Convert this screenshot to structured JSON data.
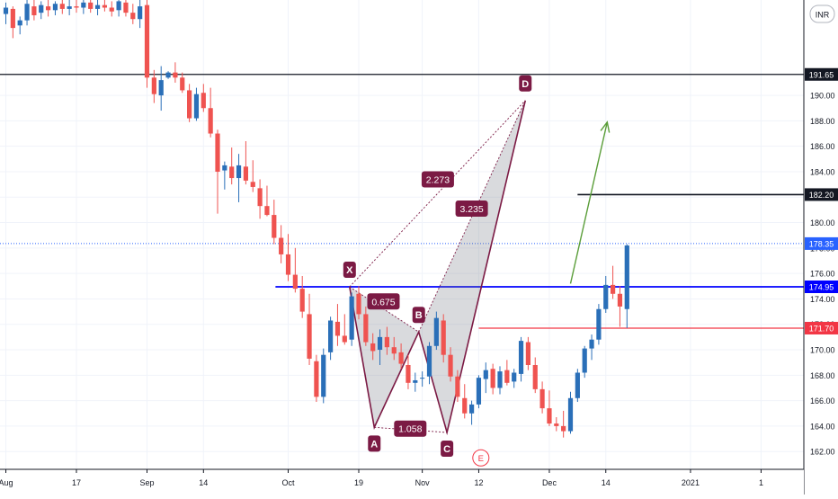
{
  "currency_badge": "INR",
  "chart_data": {
    "type": "candlestick",
    "ylim": [
      160.6,
      197.5
    ],
    "y_ticks": [
      162,
      164,
      166,
      168,
      170,
      172,
      174,
      176,
      178,
      180,
      182,
      184,
      186,
      188,
      190
    ],
    "y_tick_labels": [
      "162.00",
      "164.00",
      "166.00",
      "168.00",
      "170.00",
      "172.00",
      "174.00",
      "176.00",
      "178.00",
      "180.00",
      "182.00",
      "184.00",
      "186.00",
      "188.00",
      "190.00"
    ],
    "x_tick_labels": [
      "Aug",
      "17",
      "Sep",
      "14",
      "Oct",
      "19",
      "Nov",
      "12",
      "Dec",
      "14",
      "2021",
      "1"
    ],
    "x_tick_slots": [
      0,
      10,
      20,
      28,
      40,
      50,
      59,
      67,
      77,
      85,
      97,
      107
    ],
    "grid": true,
    "price_labels": [
      {
        "name": "level-191-65",
        "value": 191.65,
        "label": "191.65",
        "color": "#131722",
        "style": "line"
      },
      {
        "name": "level-182-20",
        "value": 182.2,
        "label": "182.20",
        "color": "#131722",
        "style": "segment"
      },
      {
        "name": "last-price",
        "value": 178.35,
        "label": "178.35",
        "color": "#2962ff",
        "style": "dotted"
      },
      {
        "name": "level-174-95",
        "value": 174.95,
        "label": "174.95",
        "color": "#0000ff",
        "style": "segment"
      },
      {
        "name": "level-171-70",
        "value": 171.7,
        "label": "171.70",
        "color": "#f23645",
        "style": "segment"
      }
    ],
    "candles": [
      [
        196.4,
        197.3,
        195.6,
        196.9
      ],
      [
        196.8,
        197.0,
        194.5,
        195.3
      ],
      [
        195.5,
        196.2,
        194.8,
        195.9
      ],
      [
        195.9,
        197.5,
        195.5,
        197.2
      ],
      [
        197.0,
        197.6,
        195.9,
        196.3
      ],
      [
        196.5,
        197.4,
        196.0,
        197.1
      ],
      [
        197.0,
        197.6,
        196.2,
        196.7
      ],
      [
        196.7,
        197.4,
        196.3,
        197.2
      ],
      [
        197.2,
        197.6,
        196.4,
        196.8
      ],
      [
        196.8,
        197.5,
        196.3,
        197.0
      ],
      [
        197.0,
        197.6,
        196.5,
        196.9
      ],
      [
        196.9,
        197.6,
        196.4,
        197.3
      ],
      [
        197.3,
        197.7,
        196.5,
        196.8
      ],
      [
        196.8,
        197.5,
        196.3,
        197.1
      ],
      [
        197.1,
        197.6,
        196.6,
        196.9
      ],
      [
        196.9,
        197.4,
        196.2,
        196.6
      ],
      [
        196.7,
        197.7,
        196.2,
        197.4
      ],
      [
        197.3,
        197.6,
        196.2,
        196.5
      ],
      [
        196.5,
        197.2,
        195.6,
        196.0
      ],
      [
        196.0,
        197.5,
        195.3,
        197.0
      ],
      [
        197.1,
        197.6,
        190.6,
        191.4
      ],
      [
        191.4,
        192.0,
        189.4,
        190.1
      ],
      [
        190.0,
        192.3,
        188.8,
        191.2
      ],
      [
        191.4,
        191.9,
        191.3,
        191.8
      ],
      [
        191.8,
        192.6,
        191.0,
        191.4
      ],
      [
        191.4,
        191.8,
        190.2,
        190.4
      ],
      [
        190.4,
        190.9,
        187.9,
        188.2
      ],
      [
        188.2,
        190.6,
        188.0,
        190.1
      ],
      [
        190.2,
        190.9,
        188.7,
        189.0
      ],
      [
        189.0,
        190.6,
        186.7,
        187.0
      ],
      [
        187.0,
        187.3,
        180.7,
        184.0
      ],
      [
        184.1,
        184.8,
        182.6,
        184.5
      ],
      [
        184.4,
        185.9,
        183.0,
        183.5
      ],
      [
        183.5,
        185.4,
        181.6,
        184.5
      ],
      [
        184.4,
        186.4,
        183.0,
        183.3
      ],
      [
        183.2,
        184.9,
        182.4,
        182.8
      ],
      [
        182.7,
        183.4,
        180.3,
        181.3
      ],
      [
        181.3,
        182.9,
        180.5,
        180.6
      ],
      [
        180.6,
        181.8,
        178.3,
        178.8
      ],
      [
        178.8,
        179.8,
        176.8,
        177.5
      ],
      [
        177.5,
        179.1,
        175.4,
        175.9
      ],
      [
        175.9,
        178.0,
        174.5,
        174.8
      ],
      [
        174.8,
        175.8,
        172.5,
        173.0
      ],
      [
        172.8,
        174.4,
        168.8,
        169.3
      ],
      [
        169.1,
        169.6,
        165.9,
        166.3
      ],
      [
        166.3,
        170.1,
        165.8,
        169.6
      ],
      [
        169.8,
        172.6,
        169.2,
        172.3
      ],
      [
        172.2,
        173.6,
        170.3,
        171.1
      ],
      [
        171.1,
        172.8,
        170.4,
        170.6
      ],
      [
        170.8,
        174.5,
        170.3,
        174.2
      ],
      [
        174.4,
        175.0,
        172.4,
        172.8
      ],
      [
        172.8,
        173.4,
        170.3,
        170.6
      ],
      [
        170.5,
        171.3,
        169.2,
        169.9
      ],
      [
        170.0,
        171.6,
        168.8,
        171.0
      ],
      [
        171.0,
        171.8,
        169.6,
        170.2
      ],
      [
        170.2,
        171.0,
        169.2,
        169.7
      ],
      [
        169.8,
        170.5,
        168.5,
        168.9
      ],
      [
        168.8,
        169.6,
        166.9,
        167.4
      ],
      [
        167.4,
        168.2,
        166.7,
        167.6
      ],
      [
        167.8,
        168.3,
        167.1,
        167.8
      ],
      [
        167.9,
        170.6,
        167.3,
        170.3
      ],
      [
        170.3,
        173.0,
        170.0,
        172.5
      ],
      [
        172.3,
        172.8,
        169.0,
        169.6
      ],
      [
        169.6,
        170.2,
        167.5,
        167.9
      ],
      [
        167.9,
        168.4,
        165.9,
        166.3
      ],
      [
        166.2,
        167.3,
        164.6,
        165.0
      ],
      [
        165.0,
        166.0,
        164.1,
        165.7
      ],
      [
        165.7,
        168.0,
        165.4,
        167.8
      ],
      [
        167.7,
        169.0,
        166.6,
        168.4
      ],
      [
        168.5,
        168.9,
        166.5,
        167.0
      ],
      [
        167.0,
        168.7,
        166.5,
        168.3
      ],
      [
        168.4,
        169.2,
        167.2,
        167.4
      ],
      [
        167.5,
        168.5,
        167.0,
        168.2
      ],
      [
        168.1,
        171.0,
        167.5,
        170.7
      ],
      [
        170.6,
        171.0,
        168.4,
        168.8
      ],
      [
        168.8,
        169.4,
        166.6,
        166.9
      ],
      [
        166.9,
        167.5,
        165.0,
        165.4
      ],
      [
        165.4,
        166.8,
        164.0,
        164.2
      ],
      [
        164.2,
        164.7,
        163.6,
        164.0
      ],
      [
        164.0,
        165.2,
        163.1,
        163.6
      ],
      [
        163.6,
        166.7,
        163.4,
        166.2
      ],
      [
        166.2,
        168.5,
        165.9,
        168.2
      ],
      [
        168.2,
        170.3,
        167.8,
        170.1
      ],
      [
        170.1,
        171.2,
        169.2,
        170.8
      ],
      [
        170.8,
        173.6,
        170.4,
        173.2
      ],
      [
        173.2,
        175.8,
        172.9,
        175.1
      ],
      [
        175.1,
        176.6,
        174.0,
        174.4
      ],
      [
        174.4,
        175.0,
        171.8,
        173.4
      ],
      [
        173.2,
        178.3,
        171.7,
        178.2
      ]
    ],
    "harmonic_points": [
      {
        "label": "X",
        "slot": 48.7,
        "value": 174.95
      },
      {
        "label": "A",
        "slot": 52.2,
        "value": 163.9
      },
      {
        "label": "B",
        "slot": 58.5,
        "value": 171.4
      },
      {
        "label": "C",
        "slot": 62.5,
        "value": 163.5
      },
      {
        "label": "D",
        "slot": 73.6,
        "value": 189.6
      }
    ],
    "ratios": [
      {
        "label": "0.675",
        "slot": 53.5,
        "value": 173.8
      },
      {
        "label": "1.058",
        "slot": 57.3,
        "value": 163.8
      },
      {
        "label": "2.273",
        "slot": 61.2,
        "value": 183.4
      },
      {
        "label": "3.235",
        "slot": 66.0,
        "value": 181.1
      }
    ],
    "event_marker": {
      "label": "E",
      "slot": 67.3,
      "value": 161.5
    },
    "arrow": {
      "from_slot": 80.0,
      "from_value": 175.2,
      "to_slot": 85.2,
      "to_value": 187.9
    }
  }
}
